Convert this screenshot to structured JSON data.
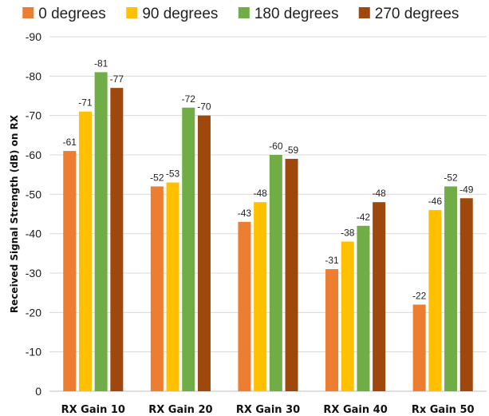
{
  "chart_data": {
    "type": "bar",
    "title": "",
    "xlabel": "",
    "ylabel": "Received Signal Strength (dB) on RX",
    "categories": [
      "RX Gain 10",
      "RX Gain 20",
      "RX Gain 30",
      "RX Gain 40",
      "Rx Gain 50"
    ],
    "series": [
      {
        "name": "0 degrees",
        "color": "#ED7D31",
        "values": [
          -61,
          -52,
          -43,
          -31,
          -22
        ]
      },
      {
        "name": "90 degrees",
        "color": "#FFC000",
        "values": [
          -71,
          -53,
          -48,
          -38,
          -46
        ]
      },
      {
        "name": "180 degrees",
        "color": "#70AD47",
        "values": [
          -81,
          -72,
          -60,
          -42,
          -52
        ]
      },
      {
        "name": "270 degrees",
        "color": "#9E480E",
        "values": [
          -77,
          -70,
          -59,
          -48,
          -49
        ]
      }
    ],
    "ylim": [
      0,
      -90
    ],
    "yticks": [
      0,
      -10,
      -20,
      -30,
      -40,
      -50,
      -60,
      -70,
      -80,
      -90
    ],
    "y_axis_reversed": true,
    "grid": true,
    "legend_position": "top",
    "data_labels": true
  }
}
